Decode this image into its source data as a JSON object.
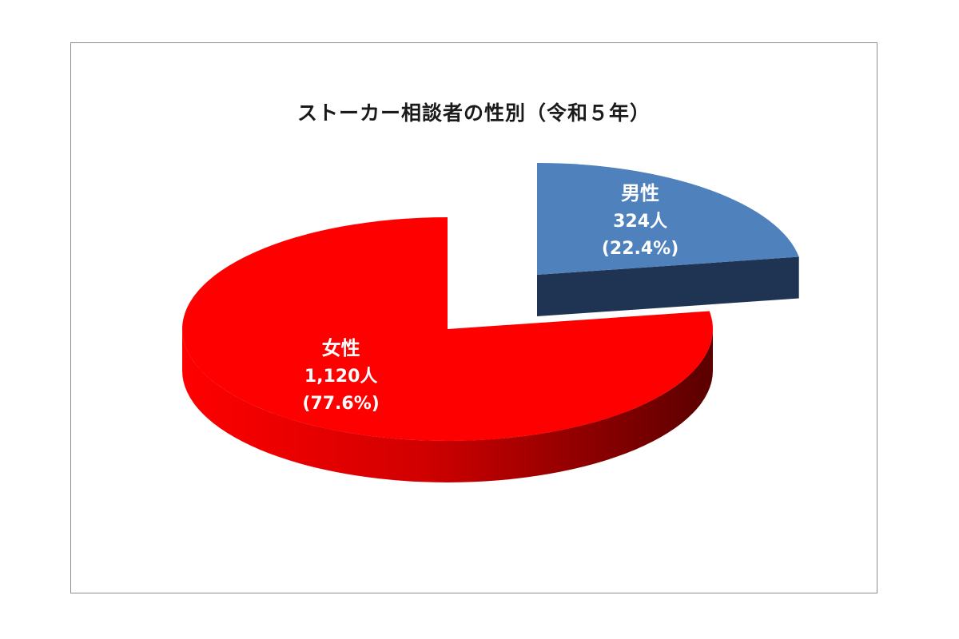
{
  "chart_data": {
    "type": "pie",
    "title": "ストーカー相談者の性別（令和５年）",
    "slices": [
      {
        "name": "男性",
        "count_label": "324人",
        "percent_label": "(22.4%)",
        "value": 324,
        "percent": 22.4,
        "color": "#4f81bd",
        "side_color": "#1f3352",
        "exploded": true
      },
      {
        "name": "女性",
        "count_label": "1,120人",
        "percent_label": "(77.6%)",
        "value": 1120,
        "percent": 77.6,
        "color": "#ff0000",
        "side_color": "#8a0000",
        "exploded": false
      }
    ]
  }
}
